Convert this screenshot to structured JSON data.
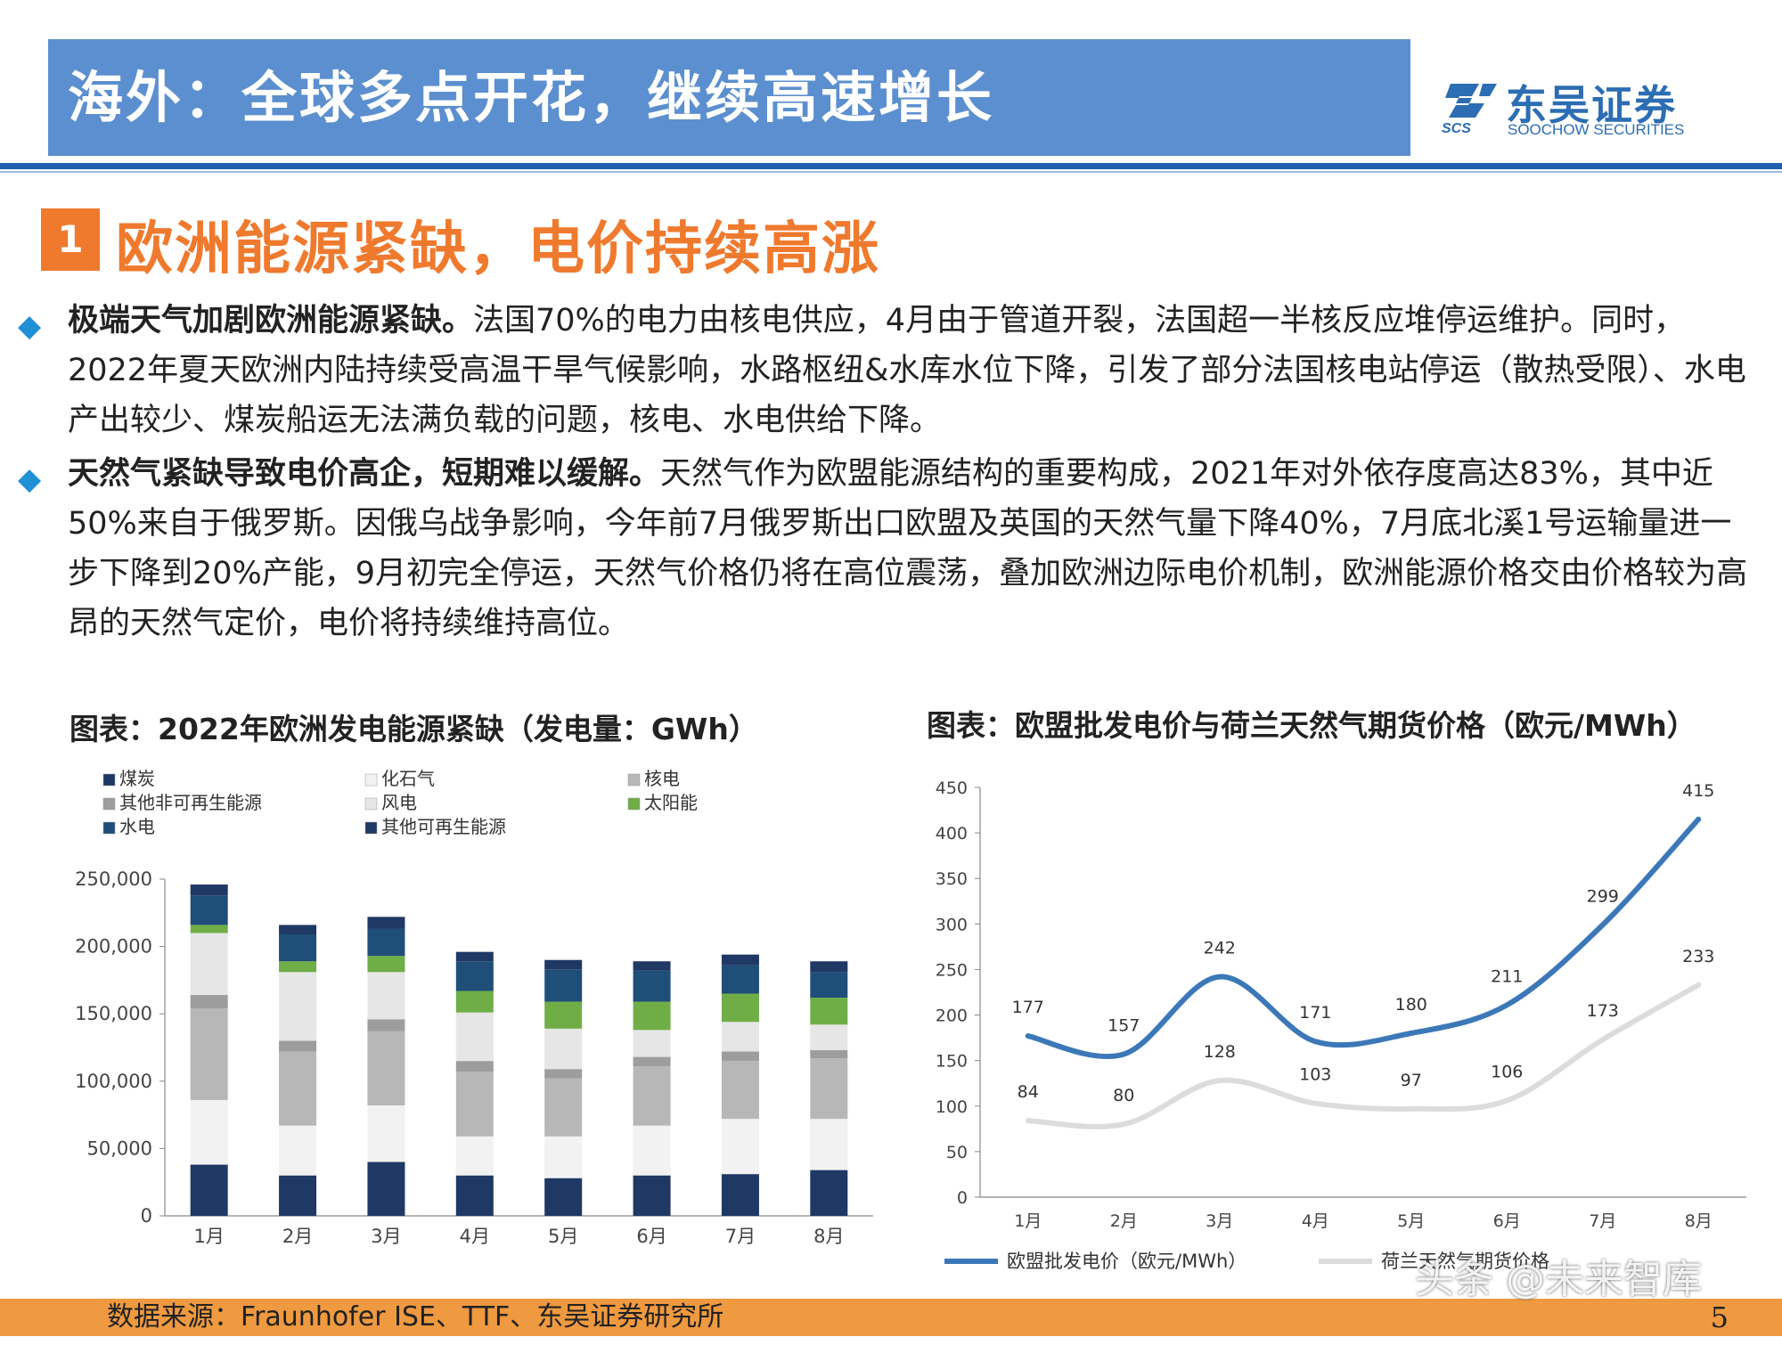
{
  "header": {
    "title": "海外：全球多点开花，继续高速增长",
    "logo_cn": "东吴证券",
    "logo_en": "SOOCHOW SECURITIES",
    "logo_abbr": "SCS"
  },
  "section": {
    "number": "1",
    "title": "欧洲能源紧缺，电价持续高涨"
  },
  "bullets": [
    {
      "bold": "极端天气加剧欧洲能源紧缺。",
      "text": "法国70%的电力由核电供应，4月由于管道开裂，法国超一半核反应堆停运维护。同时，2022年夏天欧洲内陆持续受高温干旱气候影响，水路枢纽&水库水位下降，引发了部分法国核电站停运（散热受限）、水电产出较少、煤炭船运无法满负载的问题，核电、水电供给下降。"
    },
    {
      "bold": "天然气紧缺导致电价高企，短期难以缓解。",
      "text": "天然气作为欧盟能源结构的重要构成，2021年对外依存度高达83%，其中近50%来自于俄罗斯。因俄乌战争影响，今年前7月俄罗斯出口欧盟及英国的天然气量下降40%，7月底北溪1号运输量进一步下降到20%产能，9月初完全停运，天然气价格仍将在高位震荡，叠加欧洲边际电价机制，欧洲能源价格交由价格较为高昂的天然气定价，电价将持续维持高位。"
    }
  ],
  "chart_data": [
    {
      "type": "bar",
      "stacked": true,
      "title": "图表：2022年欧洲发电能源紧缺（发电量：GWh）",
      "categories": [
        "1月",
        "2月",
        "3月",
        "4月",
        "5月",
        "6月",
        "7月",
        "8月"
      ],
      "ylim": [
        0,
        250000
      ],
      "yticks": [
        "0",
        "50,000",
        "100,000",
        "150,000",
        "200,000",
        "250,000"
      ],
      "legend_position": "top-left",
      "series": [
        {
          "name": "煤炭",
          "color": "#1f3864",
          "values": [
            38000,
            30000,
            40000,
            30000,
            28000,
            30000,
            31000,
            34000
          ]
        },
        {
          "name": "化石气",
          "color": "#f2f2f2",
          "values": [
            48000,
            37000,
            42000,
            29000,
            31000,
            37000,
            41000,
            38000
          ]
        },
        {
          "name": "核电",
          "color": "#b7b7b7",
          "values": [
            68000,
            55000,
            55000,
            48000,
            43000,
            44000,
            43000,
            45000
          ]
        },
        {
          "name": "其他非可再生能源",
          "color": "#9d9d9d",
          "values": [
            10000,
            8000,
            9000,
            8000,
            7000,
            7000,
            7000,
            6000
          ]
        },
        {
          "name": "风电",
          "color": "#e6e6e6",
          "values": [
            46000,
            51000,
            35000,
            36000,
            30000,
            20000,
            22000,
            19000
          ]
        },
        {
          "name": "太阳能",
          "color": "#70ad47",
          "values": [
            6000,
            8000,
            12000,
            16000,
            20000,
            21000,
            21000,
            20000
          ]
        },
        {
          "name": "水电",
          "color": "#1f4e79",
          "values": [
            22000,
            20000,
            20000,
            22000,
            24000,
            23000,
            21000,
            19000
          ]
        },
        {
          "name": "其他可再生能源",
          "color": "#203864",
          "values": [
            8000,
            7000,
            9000,
            7000,
            7000,
            7000,
            8000,
            8000
          ]
        }
      ]
    },
    {
      "type": "line",
      "title": "图表：欧盟批发电价与荷兰天然气期货价格（欧元/MWh）",
      "categories": [
        "1月",
        "2月",
        "3月",
        "4月",
        "5月",
        "6月",
        "7月",
        "8月"
      ],
      "ylim": [
        0,
        450
      ],
      "yticks": [
        "0",
        "50",
        "100",
        "150",
        "200",
        "250",
        "300",
        "350",
        "400",
        "450"
      ],
      "legend_position": "bottom",
      "series": [
        {
          "name": "欧盟批发电价（欧元/MWh）",
          "color": "#3c78b8",
          "values": [
            177,
            157,
            242,
            171,
            180,
            211,
            299,
            415
          ]
        },
        {
          "name": "荷兰天然气期货价格",
          "color": "#dcdcdc",
          "values": [
            84,
            80,
            128,
            103,
            97,
            106,
            173,
            233
          ]
        }
      ]
    }
  ],
  "footer": {
    "source": "数据来源：Fraunhofer ISE、TTF、东吴证券研究所",
    "page": "5"
  },
  "watermark": "头条 @未来智库"
}
